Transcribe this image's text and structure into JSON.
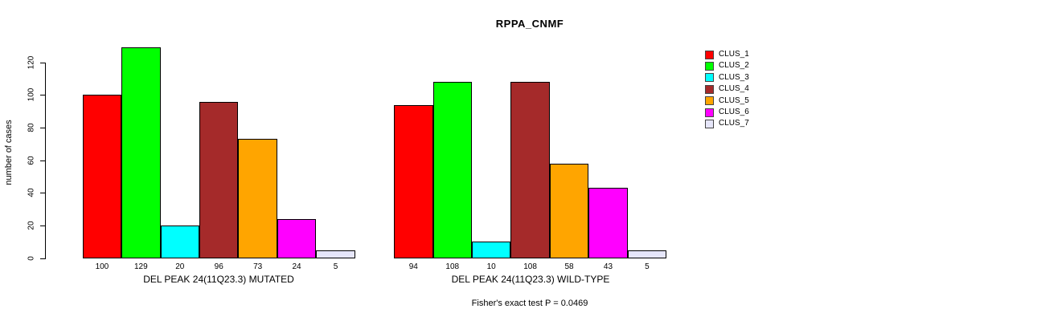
{
  "title": "RPPA_CNMF",
  "y_axis": {
    "label": "number of cases",
    "ticks": [
      0,
      20,
      40,
      60,
      80,
      100,
      120
    ]
  },
  "footer": "Fisher's exact test P = 0.0469",
  "chart_data": {
    "type": "bar",
    "title": "RPPA_CNMF",
    "xlabel": "",
    "ylabel": "number of cases",
    "ylim": [
      0,
      130
    ],
    "yticks": [
      0,
      20,
      40,
      60,
      80,
      100,
      120
    ],
    "grid": false,
    "legend_position": "right",
    "legend": [
      {
        "label": "CLUS_1",
        "color": "#FF0000"
      },
      {
        "label": "CLUS_2",
        "color": "#00FF00"
      },
      {
        "label": "CLUS_3",
        "color": "#00FFFF"
      },
      {
        "label": "CLUS_4",
        "color": "#A52A2A"
      },
      {
        "label": "CLUS_5",
        "color": "#FFA500"
      },
      {
        "label": "CLUS_6",
        "color": "#FF00FF"
      },
      {
        "label": "CLUS_7",
        "color": "#E6E6FA"
      }
    ],
    "groups": [
      {
        "label": "DEL PEAK 24(11Q23.3) MUTATED",
        "values": [
          100,
          129,
          20,
          96,
          73,
          24,
          5
        ]
      },
      {
        "label": "DEL PEAK 24(11Q23.3) WILD-TYPE",
        "values": [
          94,
          108,
          10,
          108,
          58,
          43,
          5
        ]
      }
    ],
    "annotation": "Fisher's exact test P = 0.0469"
  }
}
